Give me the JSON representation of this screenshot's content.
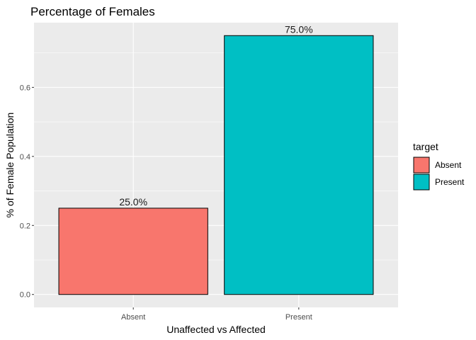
{
  "chart_data": {
    "type": "bar",
    "title": "Percentage of Females",
    "xlabel": "Unaffected vs Affected",
    "ylabel": "% of Female Population",
    "categories": [
      "Absent",
      "Present"
    ],
    "values": [
      0.25,
      0.75
    ],
    "data_labels": [
      "25.0%",
      "75.0%"
    ],
    "yticks": [
      0.0,
      0.2,
      0.4,
      0.6
    ],
    "ytick_labels": [
      "0.0",
      "0.2",
      "0.4",
      "0.6"
    ],
    "ylim": [
      -0.0375,
      0.7875
    ],
    "grid": true,
    "legend": {
      "title": "target",
      "placement": "right",
      "entries": [
        "Absent",
        "Present"
      ]
    },
    "colors": [
      "#F8766D",
      "#00BFC4"
    ],
    "panel_background": "#EBEBEB",
    "grid_color": "#FFFFFF"
  }
}
